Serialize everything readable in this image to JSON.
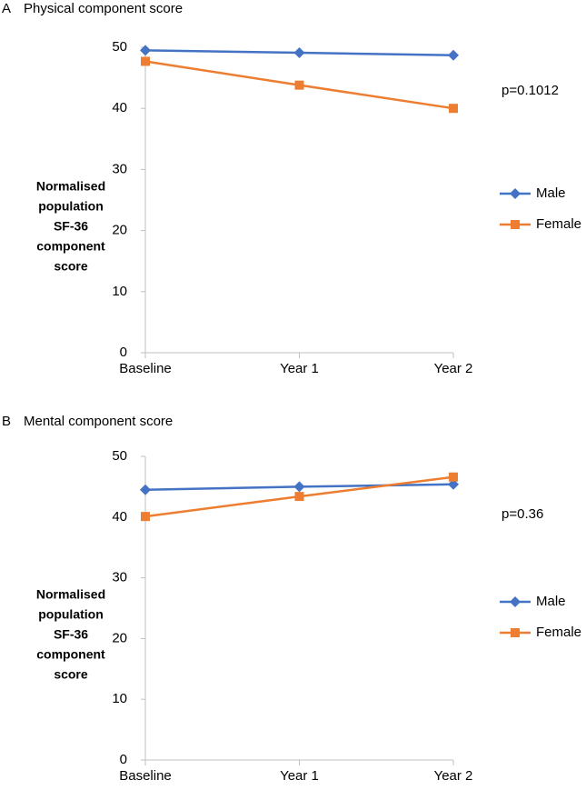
{
  "chart_data": [
    {
      "type": "line",
      "panel": "A",
      "title": "Physical component score",
      "categories": [
        "Baseline",
        "Year 1",
        "Year 2"
      ],
      "series": [
        {
          "name": "Male",
          "color": "#4472c4",
          "marker": "diamond",
          "values": [
            49.5,
            49.1,
            48.7
          ]
        },
        {
          "name": "Female",
          "color": "#ed7d31",
          "marker": "square",
          "values": [
            47.7,
            43.8,
            40.0
          ]
        }
      ],
      "ylabel": [
        "Normalised",
        "population",
        "SF-36",
        "component",
        "score"
      ],
      "ylim": [
        0,
        50
      ],
      "yticks": [
        0,
        10,
        20,
        30,
        40,
        50
      ],
      "grid": false,
      "legend": "right",
      "annotation": "p=0.1012"
    },
    {
      "type": "line",
      "panel": "B",
      "title": "Mental component score",
      "categories": [
        "Baseline",
        "Year 1",
        "Year 2"
      ],
      "series": [
        {
          "name": "Male",
          "color": "#4472c4",
          "marker": "diamond",
          "values": [
            44.5,
            45.0,
            45.4
          ]
        },
        {
          "name": "Female",
          "color": "#ed7d31",
          "marker": "square",
          "values": [
            40.1,
            43.4,
            46.6
          ]
        }
      ],
      "ylabel": [
        "Normalised",
        "population",
        "SF-36",
        "component",
        "score"
      ],
      "ylim": [
        0,
        50
      ],
      "yticks": [
        0,
        10,
        20,
        30,
        40,
        50
      ],
      "grid": false,
      "legend": "right",
      "annotation": "p=0.36"
    }
  ]
}
